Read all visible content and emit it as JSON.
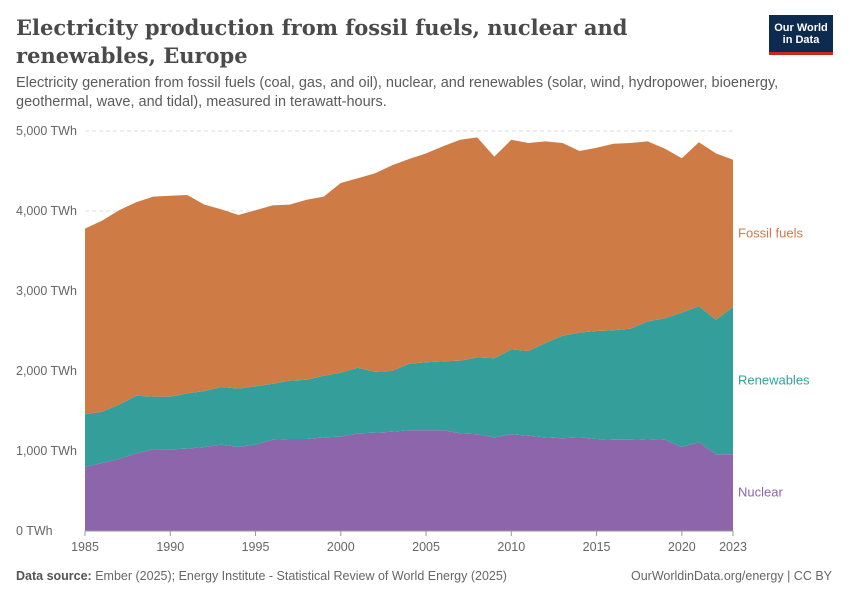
{
  "header": {
    "title": "Electricity production from fossil fuels, nuclear and renewables, Europe",
    "subtitle": "Electricity generation from fossil fuels (coal, gas, and oil), nuclear, and renewables (solar, wind, hydropower, bioenergy, geothermal, wave, and tidal), measured in terawatt-hours."
  },
  "logo": {
    "line1": "Our World",
    "line2": "in Data"
  },
  "footer": {
    "source_label": "Data source:",
    "source_text": "Ember (2025); Energy Institute - Statistical Review of World Energy (2025)",
    "credit": "OurWorldinData.org/energy | CC BY"
  },
  "chart_data": {
    "type": "area",
    "stacked": true,
    "x": [
      1985,
      1986,
      1987,
      1988,
      1989,
      1990,
      1991,
      1992,
      1993,
      1994,
      1995,
      1996,
      1997,
      1998,
      1999,
      2000,
      2001,
      2002,
      2003,
      2004,
      2005,
      2006,
      2007,
      2008,
      2009,
      2010,
      2011,
      2012,
      2013,
      2014,
      2015,
      2016,
      2017,
      2018,
      2019,
      2020,
      2021,
      2022,
      2023
    ],
    "x_ticks": [
      1985,
      1990,
      1995,
      2000,
      2005,
      2010,
      2015,
      2020,
      2023
    ],
    "xlim": [
      1985,
      2023
    ],
    "y_ticks": [
      0,
      1000,
      2000,
      3000,
      4000,
      5000
    ],
    "y_tick_labels": [
      "0 TWh",
      "1,000 TWh",
      "2,000 TWh",
      "3,000 TWh",
      "4,000 TWh",
      "5,000 TWh"
    ],
    "ylim": [
      0,
      5000
    ],
    "grid": "horizontal dashed",
    "legend": "right (inline labels)",
    "series": [
      {
        "name": "Nuclear",
        "color": "#8c65aa",
        "values": [
          800,
          850,
          900,
          970,
          1020,
          1020,
          1030,
          1050,
          1080,
          1050,
          1080,
          1140,
          1150,
          1150,
          1170,
          1180,
          1220,
          1230,
          1240,
          1260,
          1260,
          1260,
          1220,
          1210,
          1170,
          1210,
          1190,
          1170,
          1160,
          1170,
          1150,
          1140,
          1140,
          1150,
          1140,
          1050,
          1110,
          960,
          960
        ]
      },
      {
        "name": "Renewables",
        "color": "#349f9a",
        "values": [
          660,
          640,
          680,
          720,
          660,
          660,
          690,
          700,
          720,
          730,
          730,
          700,
          730,
          740,
          770,
          800,
          820,
          760,
          760,
          830,
          850,
          860,
          910,
          960,
          990,
          1060,
          1060,
          1180,
          1280,
          1310,
          1350,
          1370,
          1390,
          1470,
          1520,
          1680,
          1700,
          1680,
          1840
        ]
      },
      {
        "name": "Fossil fuels",
        "color": "#ce7b45",
        "values": [
          2320,
          2390,
          2430,
          2420,
          2500,
          2510,
          2480,
          2330,
          2220,
          2170,
          2200,
          2230,
          2200,
          2250,
          2240,
          2370,
          2370,
          2480,
          2570,
          2560,
          2610,
          2690,
          2760,
          2750,
          2520,
          2620,
          2600,
          2520,
          2410,
          2270,
          2290,
          2330,
          2320,
          2250,
          2120,
          1930,
          2050,
          2080,
          1840
        ]
      }
    ]
  }
}
